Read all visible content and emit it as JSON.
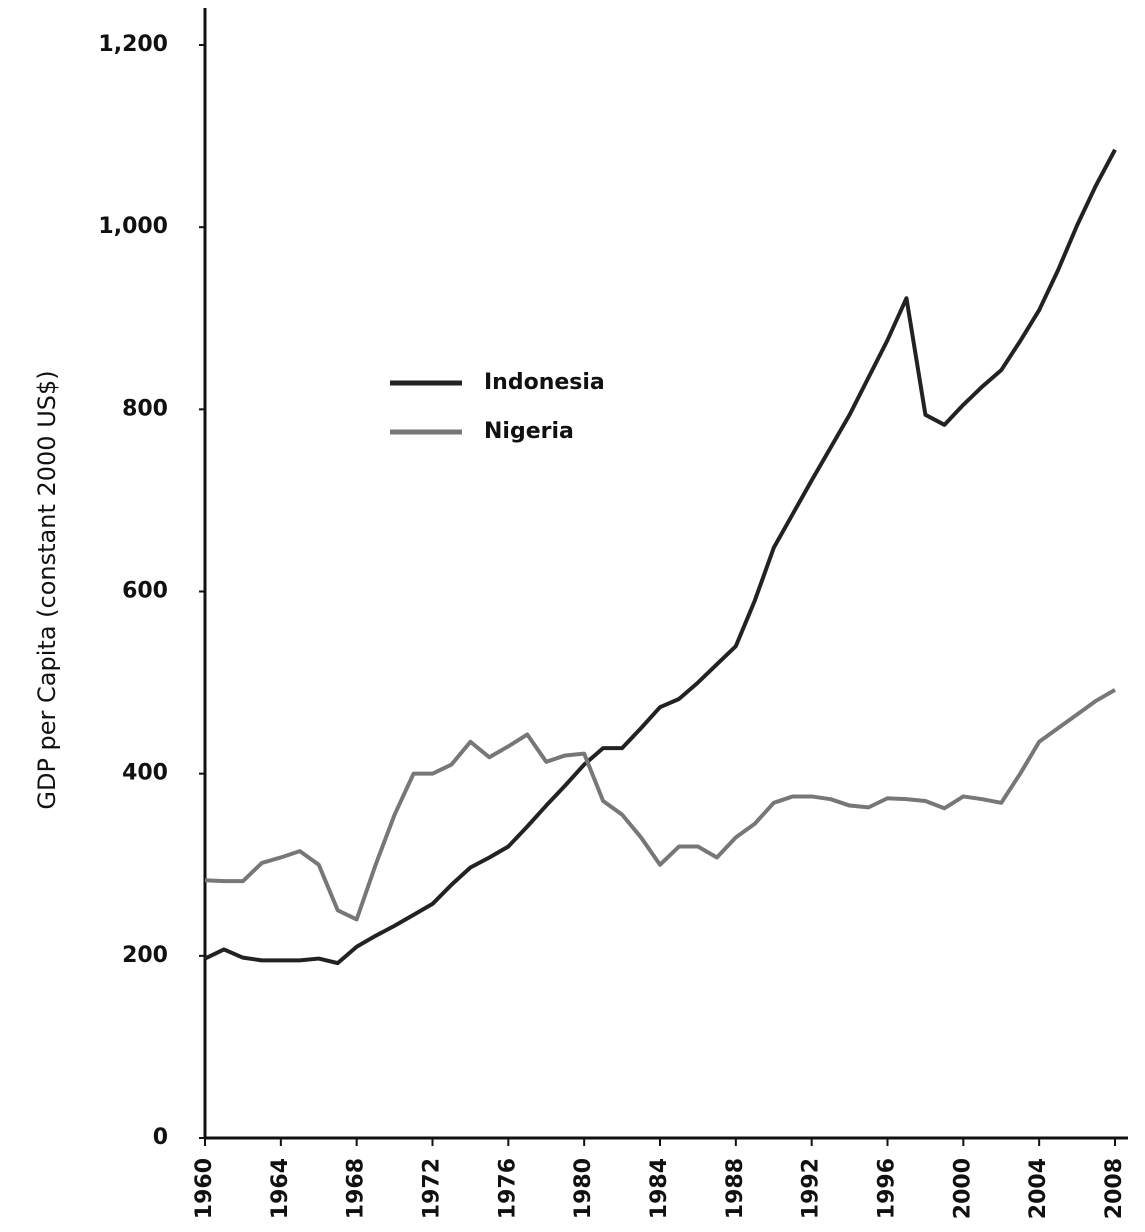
{
  "chart_data": {
    "type": "line",
    "y_label": "GDP per Capita (constant 2000 US$)",
    "x": [
      1960,
      1961,
      1962,
      1963,
      1964,
      1965,
      1966,
      1967,
      1968,
      1969,
      1970,
      1971,
      1972,
      1973,
      1974,
      1975,
      1976,
      1977,
      1978,
      1979,
      1980,
      1981,
      1982,
      1983,
      1984,
      1985,
      1986,
      1987,
      1988,
      1989,
      1990,
      1991,
      1992,
      1993,
      1994,
      1995,
      1996,
      1997,
      1998,
      1999,
      2000,
      2001,
      2002,
      2003,
      2004,
      2005,
      2006,
      2007,
      2008
    ],
    "series": [
      {
        "name": "Indonesia",
        "color": "#222222",
        "values": [
          197,
          207,
          198,
          195,
          195,
          195,
          197,
          192,
          210,
          222,
          233,
          245,
          257,
          278,
          297,
          308,
          320,
          342,
          365,
          387,
          410,
          428,
          428,
          450,
          473,
          482,
          500,
          520,
          540,
          590,
          648,
          685,
          722,
          758,
          794,
          835,
          876,
          922,
          794,
          783,
          805,
          825,
          843,
          875,
          909,
          953,
          1002,
          1046,
          1085
        ]
      },
      {
        "name": "Nigeria",
        "color": "#777777",
        "values": [
          283,
          282,
          282,
          302,
          308,
          315,
          300,
          250,
          240,
          300,
          355,
          400,
          400,
          410,
          435,
          418,
          430,
          443,
          413,
          420,
          422,
          370,
          355,
          330,
          300,
          320,
          320,
          308,
          330,
          345,
          368,
          375,
          375,
          372,
          365,
          363,
          373,
          372,
          370,
          362,
          375,
          372,
          368,
          400,
          435,
          450,
          465,
          480,
          492
        ]
      }
    ],
    "xlim": [
      1960,
      2008
    ],
    "xticks": [
      1960,
      1964,
      1968,
      1972,
      1976,
      1980,
      1984,
      1988,
      1992,
      1996,
      2000,
      2004,
      2008
    ],
    "ylim": [
      0,
      1200
    ],
    "yticks": [
      0,
      200,
      400,
      600,
      800,
      {
        "value": 1000,
        "label": "1,000"
      },
      {
        "value": 1200,
        "label": "1,200"
      }
    ],
    "legend": "upper left"
  }
}
